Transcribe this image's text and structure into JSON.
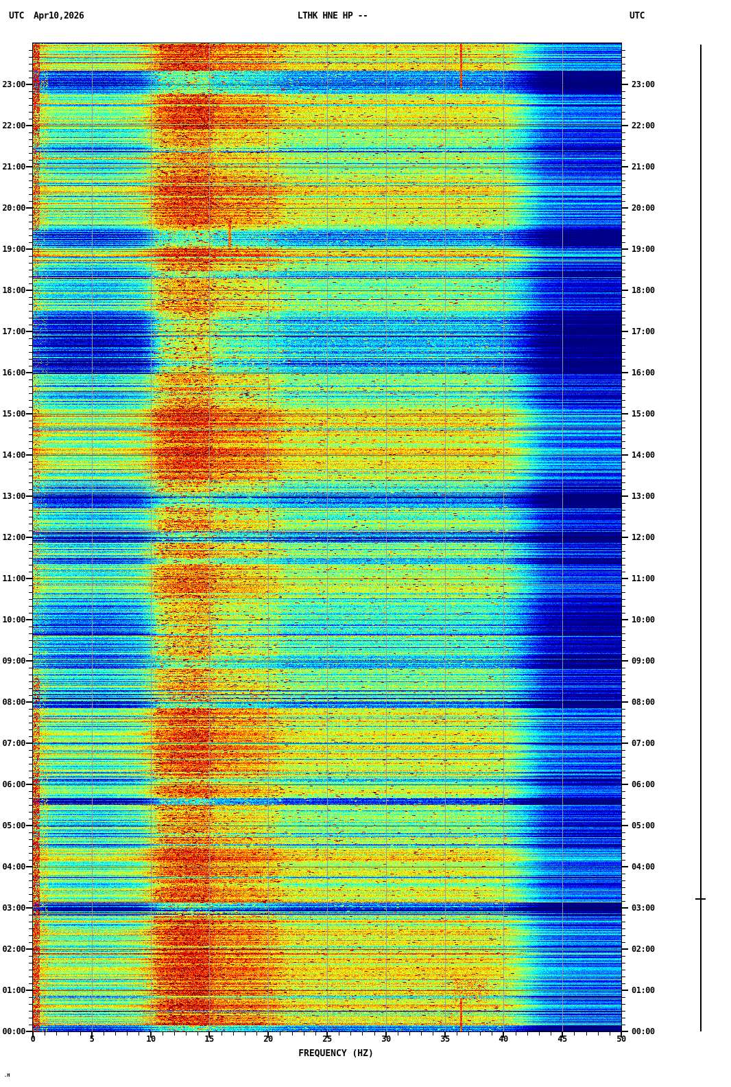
{
  "header": {
    "utc_left": "UTC",
    "date": "Apr10,2026",
    "title": "LTHK HNE HP --",
    "utc_right": "UTC"
  },
  "watermark": ".H",
  "axes": {
    "x": {
      "label": "FREQUENCY (HZ)",
      "min": 0,
      "max": 50,
      "major_tick_step": 5,
      "minor_tick_step": 1,
      "major_tick_labels": [
        "0",
        "5",
        "10",
        "15",
        "20",
        "25",
        "30",
        "35",
        "40",
        "45",
        "50"
      ]
    },
    "y_left": {
      "labels": [
        "23:00",
        "22:00",
        "21:00",
        "20:00",
        "19:00",
        "18:00",
        "17:00",
        "16:00",
        "15:00",
        "14:00",
        "13:00",
        "12:00",
        "11:00",
        "10:00",
        "09:00",
        "08:00",
        "07:00",
        "06:00",
        "05:00",
        "04:00",
        "03:00",
        "02:00",
        "01:00",
        "00:00"
      ],
      "minor_tick_minutes": 10
    },
    "y_right": {
      "labels": [
        "23:00",
        "22:00",
        "21:00",
        "20:00",
        "19:00",
        "18:00",
        "17:00",
        "16:00",
        "15:00",
        "14:00",
        "13:00",
        "12:00",
        "11:00",
        "10:00",
        "09:00",
        "08:00",
        "07:00",
        "06:00",
        "05:00",
        "04:00",
        "03:00",
        "02:00",
        "01:00",
        "00:00"
      ],
      "minor_tick_minutes": 10
    }
  },
  "chart_data": {
    "type": "heatmap",
    "subtype": "seismic-spectrogram",
    "title": "LTHK HNE HP --",
    "date": "Apr10,2026",
    "timezone": "UTC",
    "xlabel": "FREQUENCY (HZ)",
    "xlim": [
      0,
      50
    ],
    "time_span_hours": [
      0,
      24
    ],
    "time_direction": "bottom-to-top (00:00 at bottom, 24:00 at top)",
    "colormap": "jet",
    "colormap_stops": [
      [
        0,
        [
          0,
          0,
          131
        ]
      ],
      [
        0.125,
        [
          0,
          0,
          255
        ]
      ],
      [
        0.375,
        [
          0,
          255,
          255
        ]
      ],
      [
        0.625,
        [
          255,
          255,
          0
        ]
      ],
      [
        0.875,
        [
          255,
          0,
          0
        ]
      ],
      [
        1,
        [
          128,
          0,
          0
        ]
      ]
    ],
    "noise_seed": 20260410,
    "freq_profile": [
      [
        0,
        0.52
      ],
      [
        0.75,
        0.46
      ],
      [
        1.5,
        0.42
      ],
      [
        3,
        0.4
      ],
      [
        6,
        0.38
      ],
      [
        9,
        0.44
      ],
      [
        10,
        0.54
      ],
      [
        10.8,
        0.65
      ],
      [
        12,
        0.7
      ],
      [
        13.5,
        0.72
      ],
      [
        14.8,
        0.72
      ],
      [
        15.4,
        0.65
      ],
      [
        17,
        0.63
      ],
      [
        19,
        0.62
      ],
      [
        20.6,
        0.58
      ],
      [
        21.5,
        0.52
      ],
      [
        25,
        0.5
      ],
      [
        30,
        0.5
      ],
      [
        35,
        0.51
      ],
      [
        38.5,
        0.5
      ],
      [
        40.3,
        0.46
      ],
      [
        41.5,
        0.37
      ],
      [
        42.5,
        0.27
      ],
      [
        43.5,
        0.18
      ],
      [
        45,
        0.14
      ],
      [
        48,
        0.12
      ],
      [
        50,
        0.12
      ]
    ],
    "low_freq_weight": [
      [
        0,
        1
      ],
      [
        9.5,
        1
      ],
      [
        11,
        0.5
      ],
      [
        14.5,
        0.28
      ],
      [
        16,
        0.5
      ],
      [
        20,
        0.55
      ],
      [
        30,
        0.55
      ],
      [
        40,
        0.62
      ],
      [
        43,
        0.72
      ],
      [
        50,
        0.8
      ]
    ],
    "speckle_profile": [
      [
        0,
        0.1
      ],
      [
        9,
        0.1
      ],
      [
        10.5,
        0.14
      ],
      [
        15,
        0.155
      ],
      [
        16,
        0.13
      ],
      [
        21,
        0.12
      ],
      [
        40,
        0.11
      ],
      [
        43,
        0.07
      ],
      [
        50,
        0.06
      ]
    ],
    "hot_speckle": {
      "prob_profile": [
        [
          0,
          0
        ],
        [
          10,
          0
        ],
        [
          10.5,
          0.028
        ],
        [
          15.2,
          0.028
        ],
        [
          15.5,
          0.015
        ],
        [
          21,
          0.012
        ],
        [
          22,
          0.006
        ],
        [
          40,
          0.006
        ],
        [
          41,
          0
        ],
        [
          50,
          0
        ]
      ],
      "boost": 0.25,
      "max_run": 4
    },
    "row_noise": {
      "all": 0.07,
      "low": 0.17
    },
    "random_rows": {
      "dark_count": 110,
      "dark_min": 0.16,
      "dark_span": 0.16,
      "bright_count": 75,
      "bright_min": 0.1,
      "bright_span": 0.12
    },
    "time_bands": [
      {
        "from": 22.78,
        "to": 23.34,
        "delta": -0.26,
        "scope": "all"
      },
      {
        "from": 19.08,
        "to": 19.45,
        "delta": -0.24,
        "scope": "all"
      },
      {
        "from": 18.33,
        "to": 18.48,
        "delta": -0.2,
        "scope": "all"
      },
      {
        "from": 12.72,
        "to": 13.1,
        "delta": -0.2,
        "scope": "all"
      },
      {
        "from": 11.88,
        "to": 12.14,
        "delta": -0.26,
        "scope": "all"
      },
      {
        "from": 11.36,
        "to": 11.5,
        "delta": -0.16,
        "scope": "all"
      },
      {
        "from": 8.8,
        "to": 9.04,
        "delta": -0.22,
        "scope": "all"
      },
      {
        "from": 7.86,
        "to": 8.03,
        "delta": -0.18,
        "scope": "all"
      },
      {
        "from": 5.5,
        "to": 5.67,
        "delta": -0.3,
        "scope": "all"
      },
      {
        "from": 2.88,
        "to": 3.14,
        "delta": -0.24,
        "scope": "all"
      },
      {
        "from": 0.0,
        "to": 0.14,
        "delta": -0.32,
        "scope": "all"
      },
      {
        "from": 15.97,
        "to": 17.5,
        "delta": -0.27,
        "scope": "low"
      },
      {
        "from": 9.05,
        "to": 10.35,
        "delta": -0.12,
        "scope": "low"
      },
      {
        "from": 23.34,
        "to": 24.01,
        "delta": 0.1,
        "scope": "all"
      },
      {
        "from": 21.92,
        "to": 22.78,
        "delta": 0.13,
        "scope": "all"
      },
      {
        "from": 19.62,
        "to": 20.78,
        "delta": 0.1,
        "scope": "all"
      },
      {
        "from": 18.48,
        "to": 18.98,
        "delta": 0.08,
        "scope": "all"
      },
      {
        "from": 13.42,
        "to": 15.18,
        "delta": 0.1,
        "scope": "all"
      },
      {
        "from": 10.4,
        "to": 11.3,
        "delta": 0.05,
        "scope": "all"
      },
      {
        "from": 5.72,
        "to": 7.85,
        "delta": 0.09,
        "scope": "all"
      },
      {
        "from": 3.16,
        "to": 4.72,
        "delta": 0.08,
        "scope": "all"
      },
      {
        "from": 0.16,
        "to": 2.78,
        "delta": 0.12,
        "scope": "all"
      }
    ],
    "edge_column": {
      "freq": 0.55,
      "outer_freq": 1.25,
      "strong": [
        [
          0,
          6.3
        ],
        [
          21.8,
          24.01
        ]
      ],
      "medium": [
        [
          6.3,
          8.6
        ],
        [
          19.4,
          21.8
        ]
      ],
      "strong_p": 0.85,
      "medium_p": 0.5,
      "weak_p": 0.18
    },
    "vertical_lines": [
      {
        "freq": 36.35,
        "half_width": 0.07,
        "from": 22.9,
        "to": 24.01,
        "value": 0.93
      },
      {
        "freq": 36.35,
        "half_width": 0.07,
        "from": 0.0,
        "to": 0.8,
        "value": 0.93
      },
      {
        "freq": 16.7,
        "half_width": 0.07,
        "from": 19.05,
        "to": 19.75,
        "value": 0.88
      }
    ],
    "blobs": [
      {
        "f0": 35.8,
        "f1": 38.6,
        "from": 0.75,
        "to": 1.3,
        "p": 0.3,
        "vmin": 0.6,
        "vspan": 0.3
      }
    ],
    "gridlines": {
      "vertical_hz": [
        5,
        10,
        15,
        20,
        25,
        30,
        35,
        40,
        45
      ],
      "vertical_color": "#999999",
      "hour_step": 1,
      "hour_color": "rgba(10,10,40,0.55)"
    }
  }
}
